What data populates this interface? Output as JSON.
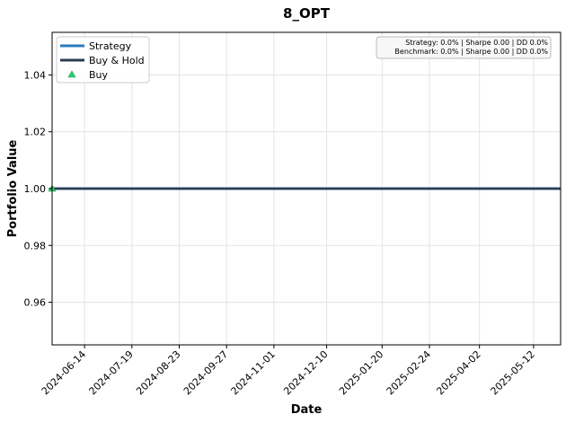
{
  "chart_data": {
    "type": "line",
    "title": "8_OPT",
    "xlabel": "Date",
    "ylabel": "Portfolio Value",
    "x_ticks": [
      "2024-06-14",
      "2024-07-19",
      "2024-08-23",
      "2024-09-27",
      "2024-11-01",
      "2024-12-10",
      "2025-01-20",
      "2025-02-24",
      "2025-04-02",
      "2025-05-12"
    ],
    "y_ticks": [
      0.96,
      0.98,
      1.0,
      1.02,
      1.04
    ],
    "y_tick_labels": [
      "0.96",
      "0.98",
      "1.00",
      "1.02",
      "1.04"
    ],
    "ylim": [
      0.945,
      1.055
    ],
    "xlim": [
      "2024-05-21",
      "2025-06-01"
    ],
    "grid": true,
    "legend_position": "upper left",
    "legend": [
      {
        "label": "Strategy",
        "kind": "line",
        "color": "#2a7bbd"
      },
      {
        "label": "Buy & Hold",
        "kind": "line",
        "color": "#2c3e50"
      },
      {
        "label": "Buy",
        "kind": "marker",
        "color": "#2ecc71"
      }
    ],
    "series": [
      {
        "name": "Strategy",
        "color": "#2a7bbd",
        "x": [
          "2024-05-21",
          "2025-06-01"
        ],
        "values": [
          1.0,
          1.0
        ]
      },
      {
        "name": "Buy & Hold",
        "color": "#2c3e50",
        "x": [
          "2024-05-21",
          "2025-06-01"
        ],
        "values": [
          1.0,
          1.0
        ]
      }
    ],
    "buy_markers": [
      {
        "x": "2024-05-21",
        "y": 1.0
      }
    ],
    "stats_lines": [
      "Strategy: 0.0% | Sharpe 0.00 | DD 0.0%",
      "Benchmark: 0.0% | Sharpe 0.00 | DD 0.0%"
    ]
  }
}
